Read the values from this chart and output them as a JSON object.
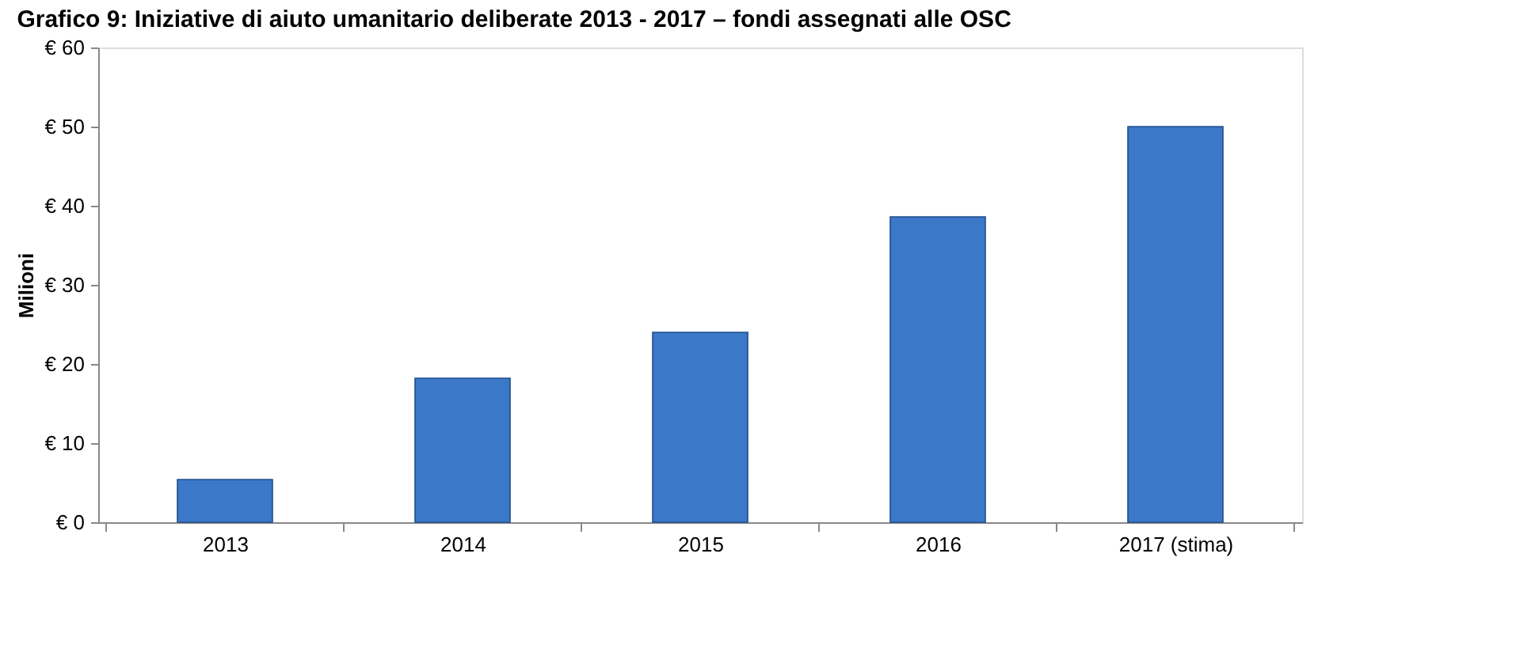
{
  "chart_data": {
    "type": "bar",
    "title": "Grafico 9: Iniziative di aiuto umanitario deliberate 2013 - 2017 – fondi assegnati alle OSC",
    "ylabel": "Milioni",
    "categories": [
      "2013",
      "2014",
      "2015",
      "2016",
      "2017 (stima)"
    ],
    "values": [
      5.4,
      18.2,
      24,
      38.6,
      50
    ],
    "color": "#3b78c8",
    "ylim": [
      0,
      60
    ],
    "yticks": [
      {
        "value": 0,
        "label": "€ 0"
      },
      {
        "value": 10,
        "label": "€ 10"
      },
      {
        "value": 20,
        "label": "€ 20"
      },
      {
        "value": 30,
        "label": "€ 30"
      },
      {
        "value": 40,
        "label": "€ 40"
      },
      {
        "value": 50,
        "label": "€ 50"
      },
      {
        "value": 60,
        "label": "€ 60"
      }
    ],
    "grid": false
  }
}
